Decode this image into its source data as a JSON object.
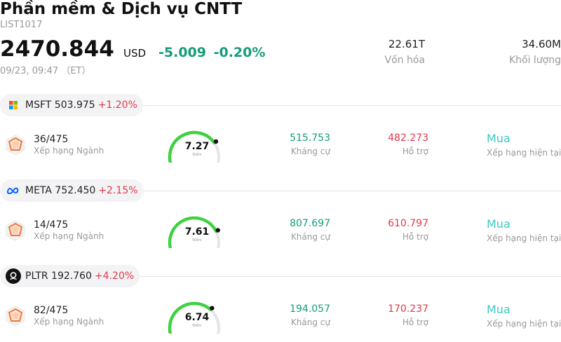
{
  "header": {
    "title": "Phần mềm & Dịch vụ CNTT",
    "code": "LIST1017",
    "price": "2470.844",
    "currency": "USD",
    "change": "-5.009",
    "change_pct": "-0.20%",
    "time": "09/23, 09:47 （ET）",
    "market_cap_value": "22.61T",
    "market_cap_label": "Vốn hóa",
    "volume_value": "34.60M",
    "volume_label": "Khối lượng"
  },
  "colors": {
    "up": "#e0394b",
    "down": "#149c7a",
    "rating": "#3cc8c0",
    "gauge": "#3fd13f"
  },
  "stocks": [
    {
      "ticker": "MSFT",
      "price": "503.975",
      "change_pct": "+1.20%",
      "logo": "microsoft-logo",
      "rank": "36/475",
      "rank_label": "Xếp hạng Ngành",
      "score": "7.27",
      "score_label": "Điểm",
      "score_fraction": 0.727,
      "resistance": "515.753",
      "resistance_label": "Kháng cự",
      "support": "482.273",
      "support_label": "Hỗ trợ",
      "rating": "Mua",
      "rating_label": "Xếp hạng hiện tại"
    },
    {
      "ticker": "META",
      "price": "752.450",
      "change_pct": "+2.15%",
      "logo": "meta-logo",
      "rank": "14/475",
      "rank_label": "Xếp hạng Ngành",
      "score": "7.61",
      "score_label": "Điểm",
      "score_fraction": 0.761,
      "resistance": "807.697",
      "resistance_label": "Kháng cự",
      "support": "610.797",
      "support_label": "Hỗ trợ",
      "rating": "Mua",
      "rating_label": "Xếp hạng hiện tại"
    },
    {
      "ticker": "PLTR",
      "price": "192.760",
      "change_pct": "+4.20%",
      "logo": "palantir-logo",
      "rank": "82/475",
      "rank_label": "Xếp hạng Ngành",
      "score": "6.74",
      "score_label": "Điểm",
      "score_fraction": 0.674,
      "resistance": "194.057",
      "resistance_label": "Kháng cự",
      "support": "170.237",
      "support_label": "Hỗ trợ",
      "rating": "Mua",
      "rating_label": "Xếp hạng hiện tại"
    }
  ]
}
